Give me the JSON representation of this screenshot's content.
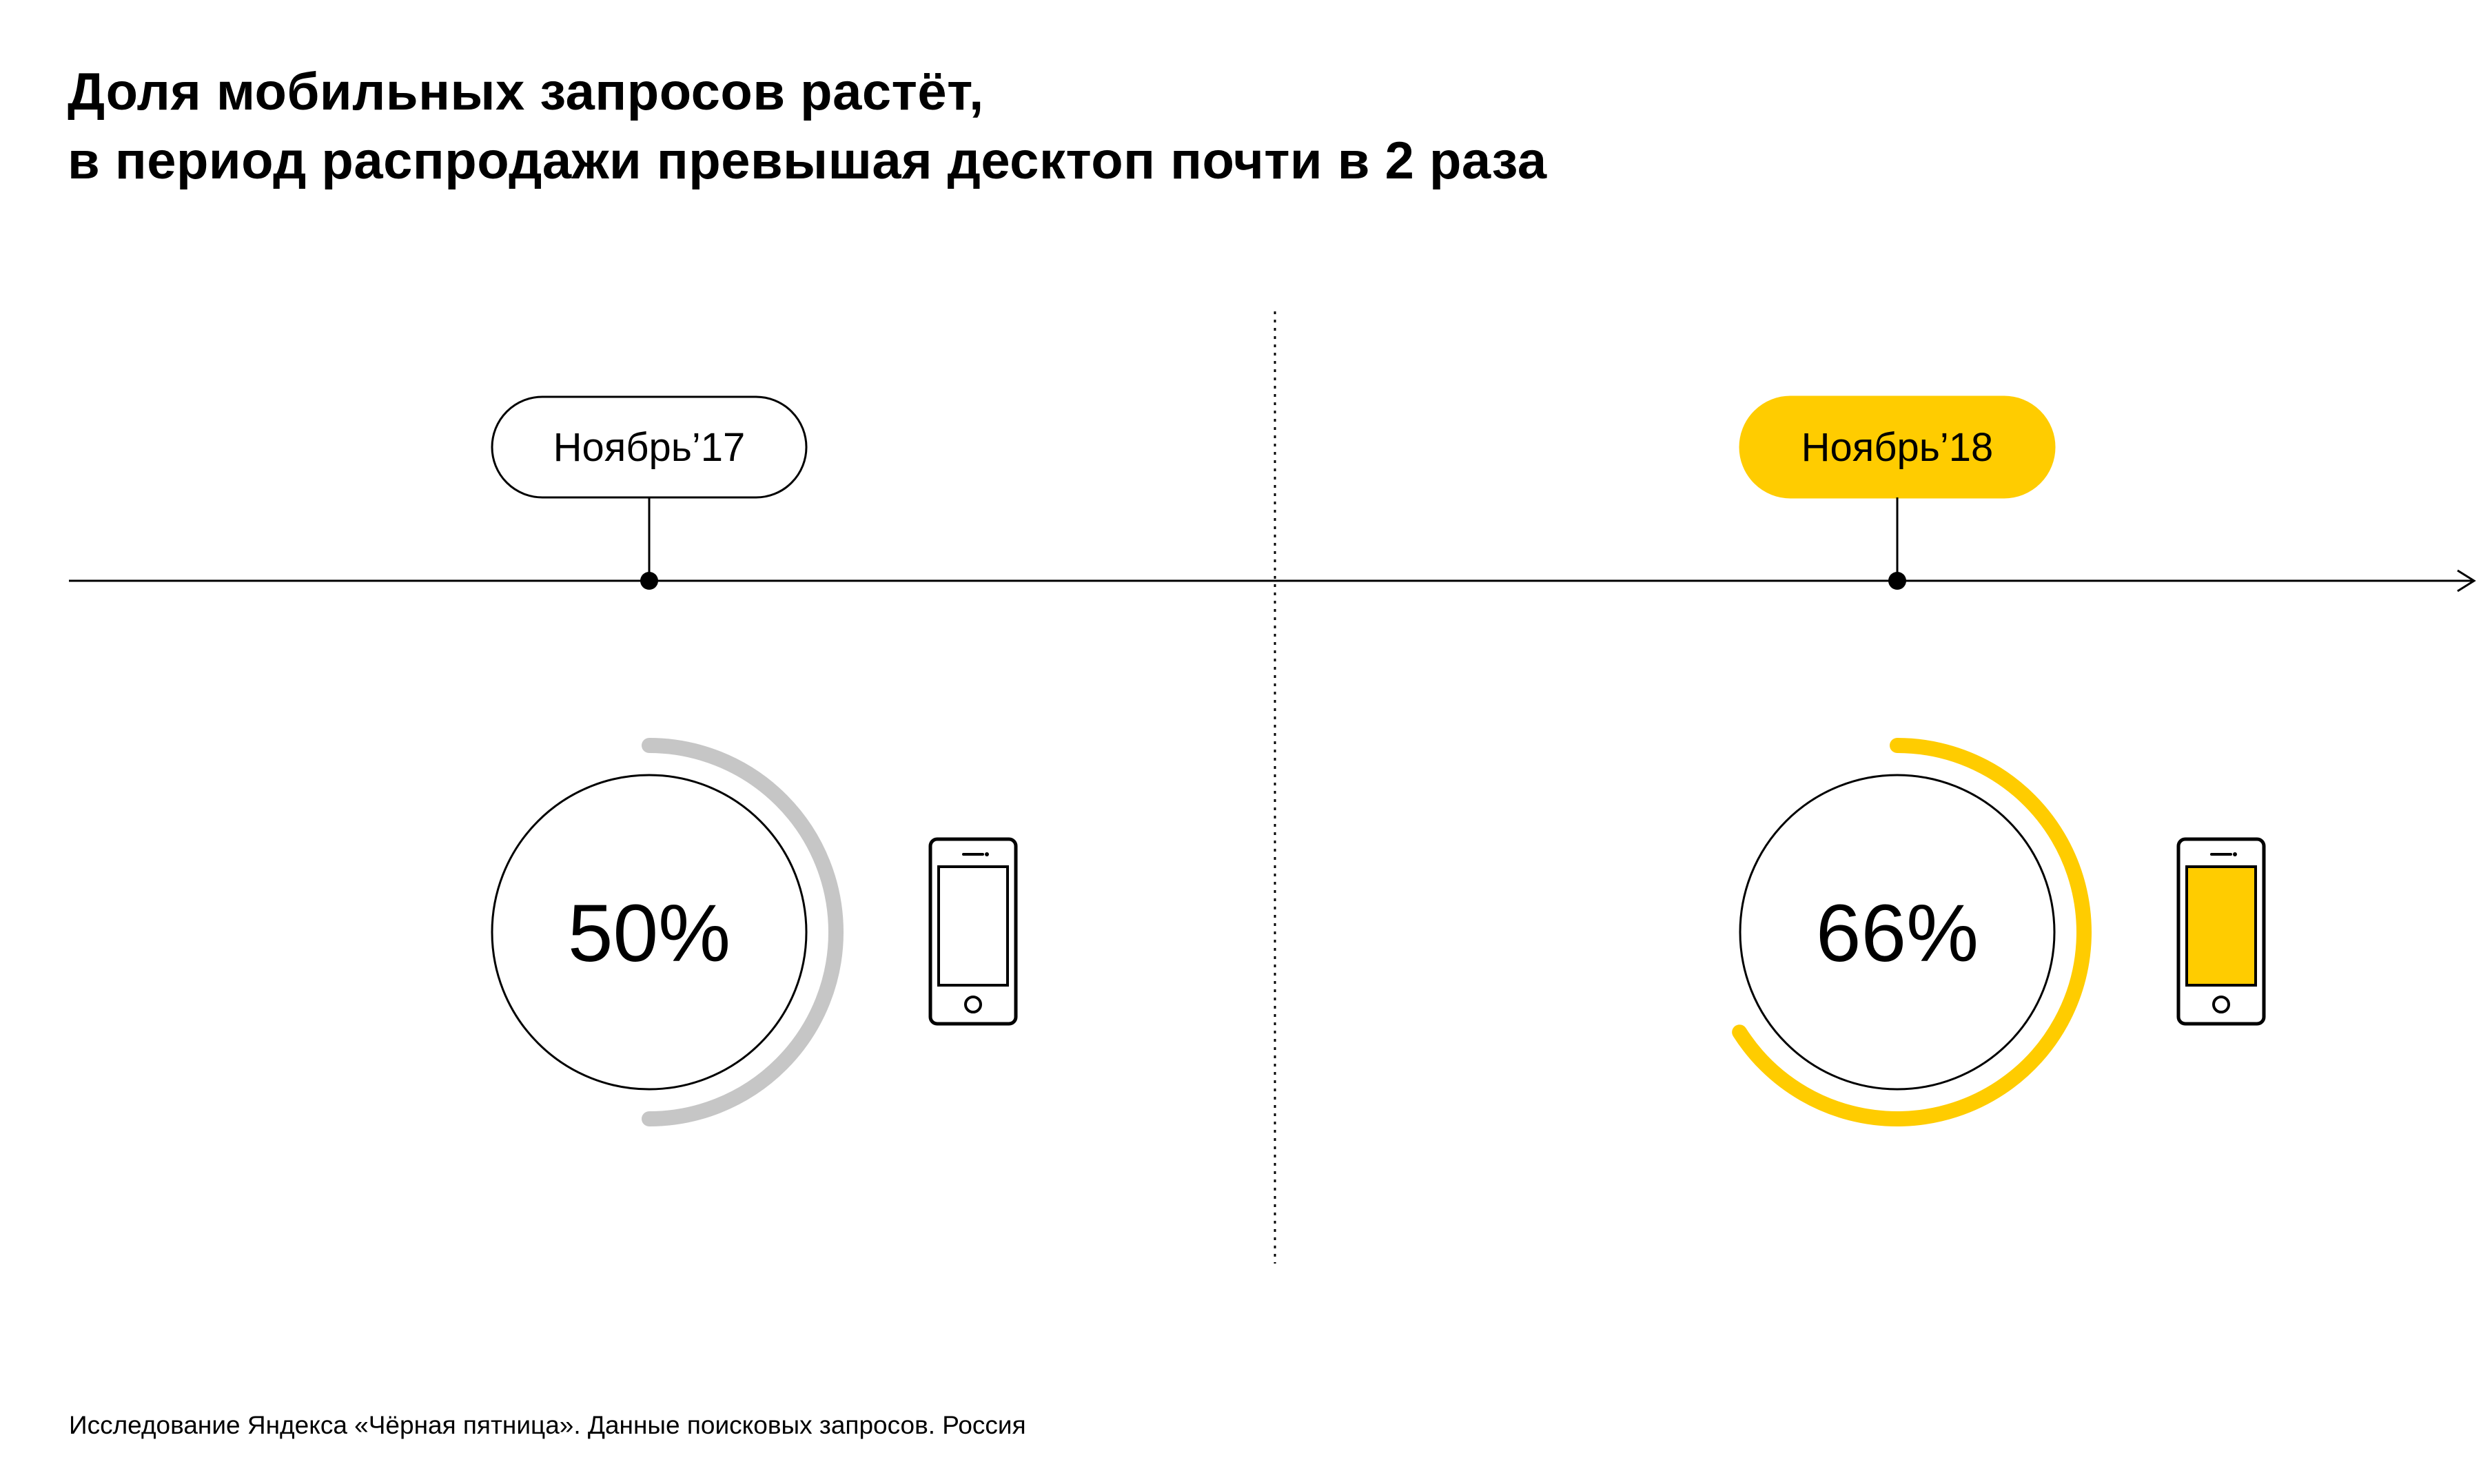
{
  "title": {
    "line1": "Доля мобильных запросов растёт,",
    "line2": "в период распродажи превышая десктоп почти в 2 раза"
  },
  "footnote": "Исследование Яндекса «Чёрная пятница». Данные поисковых запросов. Россия",
  "colors": {
    "accent": "#FFCC00",
    "neutral_arc": "#C6C6C6",
    "line": "#000000",
    "background": "#FFFFFF"
  },
  "icons": [
    "smartphone-icon",
    "arrow-right-icon"
  ],
  "chart_data": {
    "type": "pie",
    "categories": [
      "Ноябрь’17",
      "Ноябрь’18"
    ],
    "values": [
      50,
      66
    ],
    "value_labels": [
      "50%",
      "66%"
    ],
    "unit": "%",
    "highlighted_category": "Ноябрь’18"
  }
}
